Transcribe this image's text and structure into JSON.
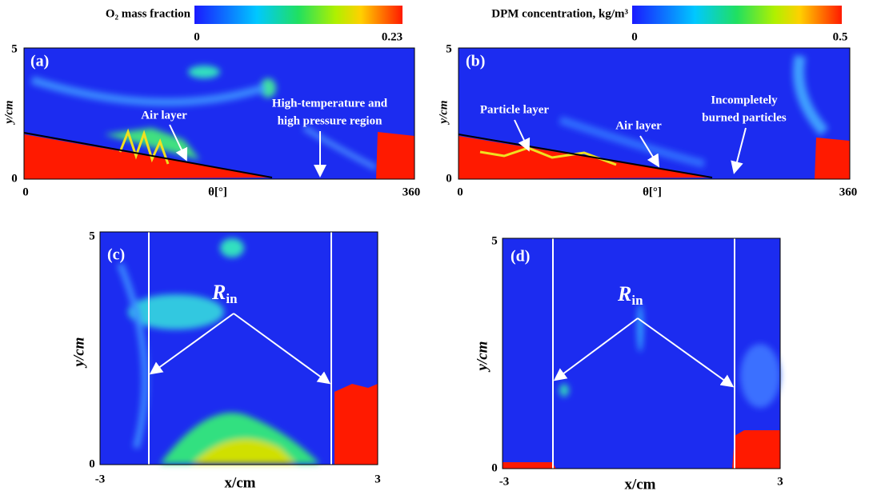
{
  "colorbars": [
    {
      "label": "O₂ mass fraction",
      "min": "0",
      "max": "0.23"
    },
    {
      "label": "DPM concentration, kg/m³",
      "min": "0",
      "max": "0.5"
    }
  ],
  "panels": [
    {
      "label": "(a)",
      "y_label": "y/cm",
      "x_label": "θ[°]",
      "y_ticks": [
        "5",
        "0"
      ],
      "x_ticks": [
        "0",
        "360"
      ],
      "annotations": [
        "Air layer",
        "High-temperature and",
        "high pressure region"
      ]
    },
    {
      "label": "(b)",
      "y_label": "y/cm",
      "x_label": "θ[°]",
      "y_ticks": [
        "5",
        "0"
      ],
      "x_ticks": [
        "0",
        "360"
      ],
      "annotations": [
        "Particle layer",
        "Air layer",
        "Incompletely",
        "burned particles"
      ]
    },
    {
      "label": "(c)",
      "y_label": "y/cm",
      "x_label": "x/cm",
      "y_ticks": [
        "5",
        "0"
      ],
      "x_ticks": [
        "-3",
        "3"
      ],
      "radius": {
        "symbol": "R",
        "subscript": "in"
      }
    },
    {
      "label": "(d)",
      "y_label": "y/cm",
      "x_label": "x/cm",
      "y_ticks": [
        "5",
        "0"
      ],
      "x_ticks": [
        "-3",
        "3"
      ],
      "radius": {
        "symbol": "R",
        "subscript": "in"
      }
    }
  ]
}
